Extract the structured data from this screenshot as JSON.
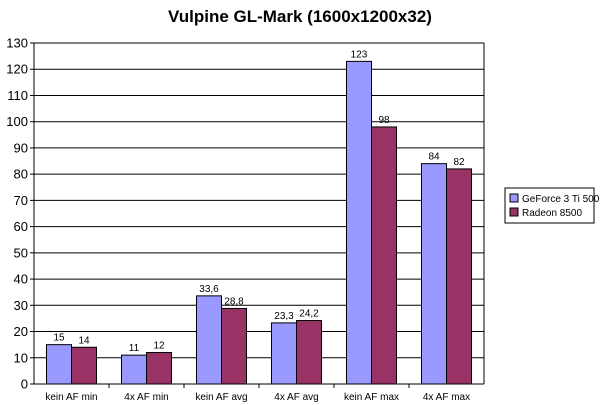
{
  "chart_data": {
    "type": "bar",
    "title": "Vulpine GL-Mark (1600x1200x32)",
    "xlabel": "",
    "ylabel": "",
    "ylim": [
      0,
      130
    ],
    "ytick_step": 10,
    "grid": true,
    "legend": "right",
    "categories": [
      "kein AF min",
      "4x AF min",
      "kein AF avg",
      "4x AF avg",
      "kein AF max",
      "4x AF max"
    ],
    "series": [
      {
        "name": "GeForce 3 Ti 500",
        "color": "#9999FF",
        "values": [
          15,
          11,
          33.6,
          23.3,
          123,
          84
        ],
        "labels": [
          "15",
          "11",
          "33,6",
          "23,3",
          "123",
          "84"
        ]
      },
      {
        "name": "Radeon 8500",
        "color": "#993366",
        "values": [
          14,
          12,
          28.8,
          24.2,
          98,
          82
        ],
        "labels": [
          "14",
          "12",
          "28,8",
          "24,2",
          "98",
          "82"
        ]
      }
    ]
  }
}
